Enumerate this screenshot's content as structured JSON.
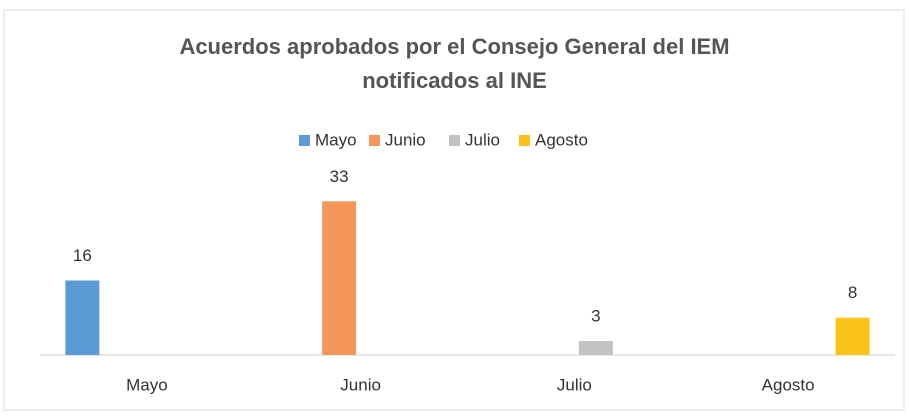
{
  "chart_data": {
    "type": "bar",
    "title": "Acuerdos aprobados por el Consejo General del IEM notificados al INE",
    "categories": [
      "Mayo",
      "Junio",
      "Julio",
      "Agosto"
    ],
    "series": [
      {
        "name": "Mayo",
        "color": "#5b9bd5",
        "values": [
          16,
          null,
          null,
          null
        ]
      },
      {
        "name": "Junio",
        "color": "#f4955a",
        "values": [
          null,
          33,
          null,
          null
        ]
      },
      {
        "name": "Julio",
        "color": "#c3c3c3",
        "values": [
          null,
          null,
          3,
          null
        ]
      },
      {
        "name": "Agosto",
        "color": "#fcc419",
        "values": [
          null,
          null,
          null,
          8
        ]
      }
    ],
    "ylim": [
      0,
      35
    ],
    "legend": "top",
    "grid": false
  }
}
